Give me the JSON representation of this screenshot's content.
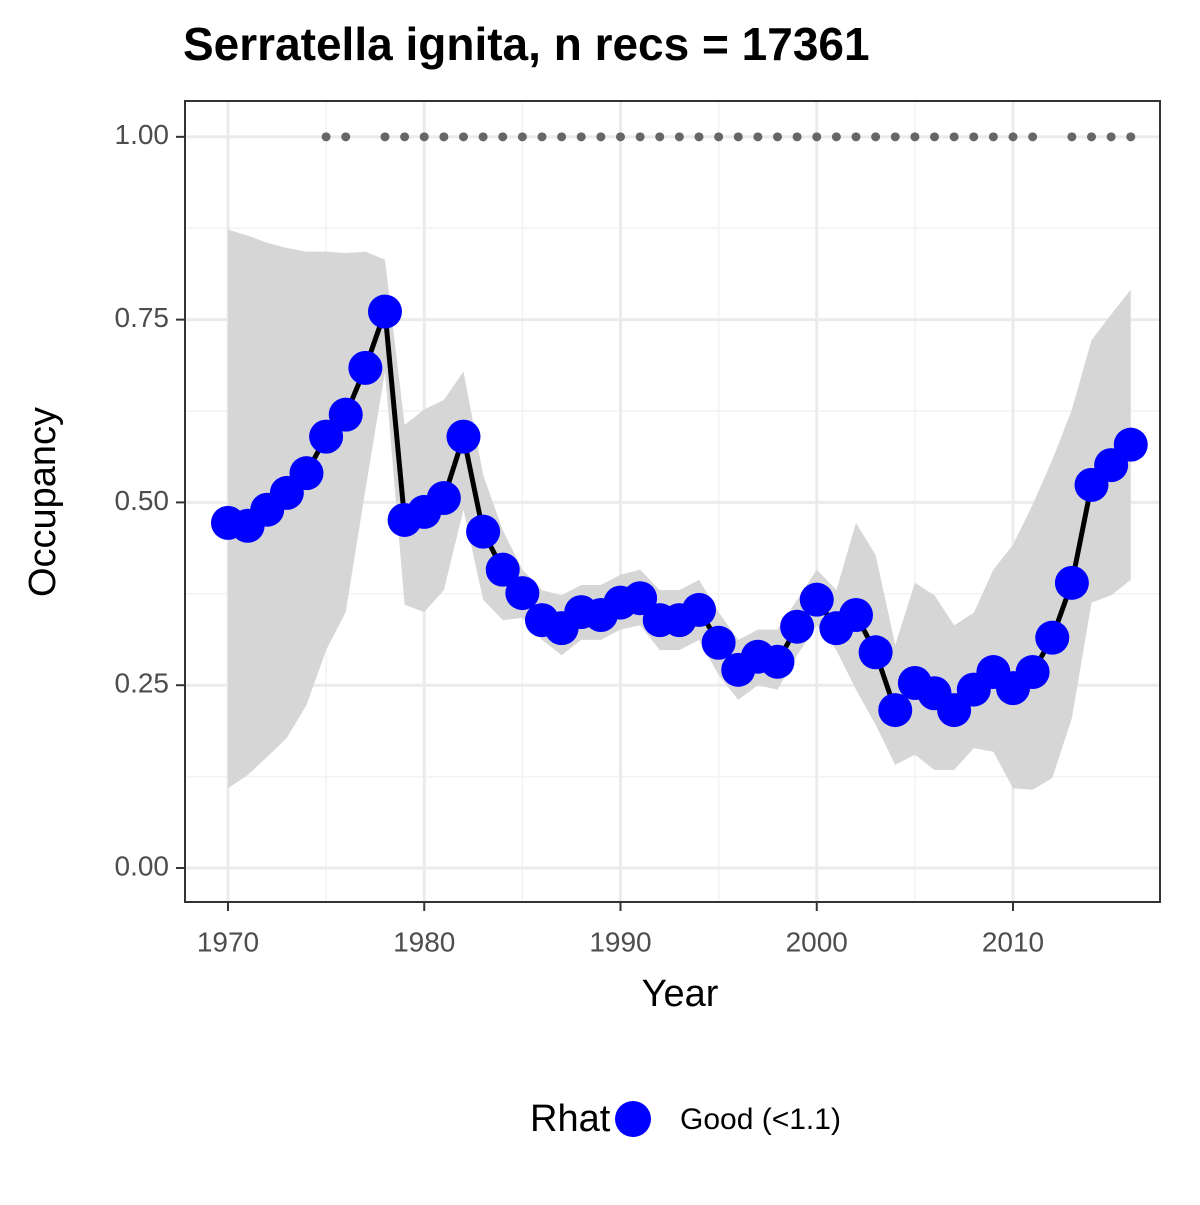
{
  "chart_data": {
    "type": "line",
    "title": "Serratella ignita, n recs = 17361",
    "x_label": "Year",
    "y_label": "Occupancy",
    "x": [
      1970,
      1971,
      1972,
      1973,
      1974,
      1975,
      1976,
      1977,
      1978,
      1979,
      1980,
      1981,
      1982,
      1983,
      1984,
      1985,
      1986,
      1987,
      1988,
      1989,
      1990,
      1991,
      1992,
      1993,
      1994,
      1995,
      1996,
      1997,
      1998,
      1999,
      2000,
      2001,
      2002,
      2003,
      2004,
      2005,
      2006,
      2007,
      2008,
      2009,
      2010,
      2011,
      2012,
      2013,
      2014,
      2015,
      2016
    ],
    "series": [
      {
        "name": "Good (<1.1)",
        "color": "#0000ff",
        "line_color": "#000000",
        "values": [
          0.472,
          0.468,
          0.49,
          0.513,
          0.54,
          0.59,
          0.62,
          0.684,
          0.761,
          0.476,
          0.487,
          0.506,
          0.59,
          0.46,
          0.408,
          0.376,
          0.339,
          0.328,
          0.35,
          0.346,
          0.363,
          0.369,
          0.339,
          0.339,
          0.353,
          0.308,
          0.271,
          0.289,
          0.282,
          0.33,
          0.367,
          0.328,
          0.346,
          0.295,
          0.216,
          0.253,
          0.239,
          0.216,
          0.244,
          0.268,
          0.246,
          0.268,
          0.315,
          0.39,
          0.524,
          0.551,
          0.579
        ],
        "upper": [
          0.873,
          0.865,
          0.855,
          0.848,
          0.843,
          0.843,
          0.841,
          0.843,
          0.832,
          0.606,
          0.627,
          0.64,
          0.679,
          0.538,
          0.462,
          0.408,
          0.38,
          0.373,
          0.387,
          0.387,
          0.401,
          0.408,
          0.38,
          0.38,
          0.394,
          0.35,
          0.312,
          0.326,
          0.326,
          0.367,
          0.408,
          0.38,
          0.472,
          0.428,
          0.305,
          0.39,
          0.373,
          0.332,
          0.349,
          0.408,
          0.442,
          0.497,
          0.558,
          0.627,
          0.722,
          0.757,
          0.791
        ],
        "lower": [
          0.109,
          0.127,
          0.152,
          0.178,
          0.223,
          0.298,
          0.35,
          0.517,
          0.679,
          0.36,
          0.35,
          0.38,
          0.49,
          0.367,
          0.339,
          0.342,
          0.312,
          0.291,
          0.312,
          0.312,
          0.326,
          0.332,
          0.298,
          0.298,
          0.312,
          0.264,
          0.23,
          0.25,
          0.244,
          0.291,
          0.332,
          0.298,
          0.244,
          0.196,
          0.141,
          0.155,
          0.134,
          0.134,
          0.164,
          0.159,
          0.109,
          0.107,
          0.123,
          0.205,
          0.363,
          0.373,
          0.394
        ],
        "band_color": "#d6d6d6"
      }
    ],
    "records": {
      "color": "#666666",
      "x": [
        1975,
        1976,
        1978,
        1979,
        1980,
        1981,
        1982,
        1983,
        1984,
        1985,
        1986,
        1987,
        1988,
        1989,
        1990,
        1991,
        1992,
        1993,
        1994,
        1995,
        1996,
        1997,
        1998,
        1999,
        2000,
        2001,
        2002,
        2003,
        2004,
        2005,
        2006,
        2007,
        2008,
        2009,
        2010,
        2011,
        2013,
        2014,
        2015,
        2016
      ],
      "values": [
        1,
        1,
        1,
        1,
        1,
        1,
        1,
        1,
        1,
        1,
        1,
        1,
        1,
        1,
        1,
        1,
        1,
        1,
        1,
        1,
        1,
        1,
        1,
        1,
        1,
        1,
        1,
        1,
        1,
        1,
        1,
        1,
        1,
        1,
        1,
        1,
        1,
        1,
        1,
        1
      ]
    },
    "xlim": [
      1967.81,
      2017.49
    ],
    "ylim": [
      -0.0465,
      1.049
    ],
    "xticks": [
      1970,
      1980,
      1990,
      2000,
      2010
    ],
    "yticks": [
      {
        "value": 0,
        "label": "0.00"
      },
      {
        "value": 0.25,
        "label": "0.25"
      },
      {
        "value": 0.5,
        "label": "0.50"
      },
      {
        "value": 0.75,
        "label": "0.75"
      },
      {
        "value": 1,
        "label": "1.00"
      }
    ],
    "grid": true,
    "minor_grid": true,
    "legend_title": "Rhat",
    "legend_position": "bottom"
  }
}
